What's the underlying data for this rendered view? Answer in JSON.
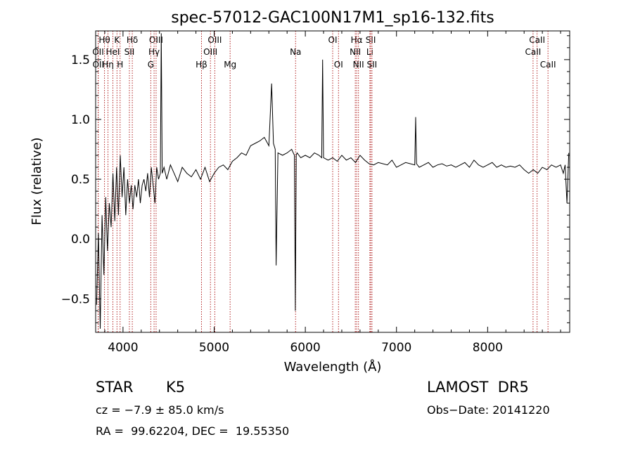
{
  "chart_data": {
    "type": "line",
    "title": "spec-57012-GAC100N17M1_sp16-132.fits",
    "xlabel": "Wavelength (Å)",
    "ylabel": "Flux (relative)",
    "xlim": [
      3700,
      8900
    ],
    "ylim": [
      -0.78,
      1.74
    ],
    "xticks": [
      4000,
      5000,
      6000,
      7000,
      8000
    ],
    "xtick_labels": [
      "4000",
      "5000",
      "6000",
      "7000",
      "8000"
    ],
    "yticks": [
      -0.5,
      0.0,
      0.5,
      1.0,
      1.5
    ],
    "ytick_labels": [
      "−0.5",
      "0.0",
      "0.5",
      "1.0",
      "1.5"
    ],
    "grid": false,
    "line_color": "#000000",
    "marker_color": "#b22222",
    "series": [
      {
        "values": {
          "x": [
            3710,
            3730,
            3750,
            3770,
            3790,
            3810,
            3830,
            3850,
            3870,
            3890,
            3910,
            3930,
            3950,
            3970,
            3990,
            4010,
            4030,
            4050,
            4070,
            4090,
            4110,
            4130,
            4150,
            4170,
            4190,
            4210,
            4230,
            4250,
            4270,
            4290,
            4310,
            4330,
            4350,
            4370,
            4390,
            4410,
            4420,
            4430,
            4450,
            4480,
            4520,
            4560,
            4600,
            4650,
            4700,
            4750,
            4800,
            4850,
            4900,
            4950,
            5000,
            5050,
            5100,
            5150,
            5200,
            5250,
            5300,
            5350,
            5400,
            5450,
            5500,
            5550,
            5600,
            5630,
            5650,
            5670,
            5680,
            5700,
            5750,
            5800,
            5850,
            5880,
            5890,
            5900,
            5910,
            5950,
            6000,
            6050,
            6100,
            6150,
            6180,
            6190,
            6200,
            6250,
            6300,
            6350,
            6400,
            6450,
            6500,
            6550,
            6600,
            6650,
            6700,
            6750,
            6800,
            6850,
            6900,
            6950,
            7000,
            7050,
            7100,
            7150,
            7200,
            7210,
            7220,
            7250,
            7300,
            7350,
            7400,
            7450,
            7500,
            7550,
            7600,
            7650,
            7700,
            7750,
            7800,
            7850,
            7900,
            7950,
            8000,
            8050,
            8100,
            8150,
            8200,
            8250,
            8300,
            8350,
            8400,
            8450,
            8500,
            8550,
            8600,
            8650,
            8700,
            8750,
            8800,
            8830,
            8850,
            8870,
            8890
          ],
          "y": [
            -0.55,
            0.05,
            -0.75,
            0.2,
            -0.3,
            0.35,
            -0.1,
            0.3,
            0.1,
            0.55,
            0.15,
            0.6,
            0.2,
            0.7,
            0.35,
            0.6,
            0.2,
            0.5,
            0.3,
            0.45,
            0.25,
            0.45,
            0.35,
            0.5,
            0.3,
            0.45,
            0.5,
            0.4,
            0.55,
            0.35,
            0.6,
            0.45,
            0.3,
            0.6,
            0.5,
            0.55,
            1.72,
            0.55,
            0.6,
            0.5,
            0.62,
            0.55,
            0.48,
            0.6,
            0.55,
            0.52,
            0.58,
            0.5,
            0.6,
            0.48,
            0.55,
            0.6,
            0.62,
            0.58,
            0.65,
            0.68,
            0.72,
            0.7,
            0.78,
            0.8,
            0.82,
            0.85,
            0.78,
            1.3,
            0.8,
            0.75,
            -0.22,
            0.72,
            0.7,
            0.72,
            0.75,
            0.7,
            -0.6,
            0.7,
            0.72,
            0.68,
            0.7,
            0.68,
            0.72,
            0.7,
            0.68,
            1.5,
            0.68,
            0.66,
            0.68,
            0.65,
            0.7,
            0.66,
            0.68,
            0.64,
            0.7,
            0.66,
            0.63,
            0.62,
            0.64,
            0.63,
            0.62,
            0.66,
            0.6,
            0.62,
            0.64,
            0.63,
            0.62,
            1.02,
            0.63,
            0.6,
            0.62,
            0.64,
            0.6,
            0.62,
            0.63,
            0.61,
            0.62,
            0.6,
            0.62,
            0.64,
            0.6,
            0.66,
            0.62,
            0.6,
            0.62,
            0.64,
            0.6,
            0.62,
            0.6,
            0.61,
            0.6,
            0.62,
            0.58,
            0.55,
            0.58,
            0.55,
            0.6,
            0.58,
            0.62,
            0.6,
            0.62,
            0.55,
            0.62,
            0.3,
            0.72
          ]
        }
      }
    ],
    "spectral_lines": [
      {
        "label": "Hθ",
        "x": 3797,
        "row": 1
      },
      {
        "label": "K",
        "x": 3934,
        "row": 1
      },
      {
        "label": "Hδ",
        "x": 4102,
        "row": 1
      },
      {
        "label": "OIII",
        "x": 4363,
        "row": 1
      },
      {
        "label": "OIII",
        "x": 5007,
        "row": 1
      },
      {
        "label": "Na",
        "x": 5893,
        "row": 2
      },
      {
        "label": "OI",
        "x": 6300,
        "row": 1
      },
      {
        "label": "Hα",
        "x": 6563,
        "row": 1
      },
      {
        "label": "SII",
        "x": 6717,
        "row": 1
      },
      {
        "label": "CaII",
        "x": 8542,
        "row": 1
      },
      {
        "label": "OII",
        "x": 3727,
        "row": 2
      },
      {
        "label": "HeI",
        "x": 3889,
        "row": 2
      },
      {
        "label": "SII",
        "x": 4070,
        "row": 2
      },
      {
        "label": "Hγ",
        "x": 4341,
        "row": 2
      },
      {
        "label": "OIII",
        "x": 4959,
        "row": 2
      },
      {
        "label": "NII",
        "x": 6548,
        "row": 2
      },
      {
        "label": "Li",
        "x": 6708,
        "row": 2
      },
      {
        "label": "CaII",
        "x": 8498,
        "row": 2
      },
      {
        "label": "OII",
        "x": 3729,
        "row": 3
      },
      {
        "label": "Hη",
        "x": 3835,
        "row": 3
      },
      {
        "label": "H",
        "x": 3968,
        "row": 3
      },
      {
        "label": "G",
        "x": 4305,
        "row": 3
      },
      {
        "label": "Hβ",
        "x": 4861,
        "row": 3
      },
      {
        "label": "Mg",
        "x": 5175,
        "row": 3
      },
      {
        "label": "OI",
        "x": 6364,
        "row": 3
      },
      {
        "label": "NII",
        "x": 6583,
        "row": 3
      },
      {
        "label": "SII",
        "x": 6731,
        "row": 3
      },
      {
        "label": "CaII",
        "x": 8662,
        "row": 3
      }
    ]
  },
  "footer": {
    "object_type": "STAR",
    "subclass": "K5",
    "survey": "LAMOST  DR5",
    "redshift": "cz = −7.9 ± 85.0 km/s",
    "obs_date": "Obs−Date: 20141220",
    "coords": "RA =  99.62204, DEC =  19.55350"
  }
}
